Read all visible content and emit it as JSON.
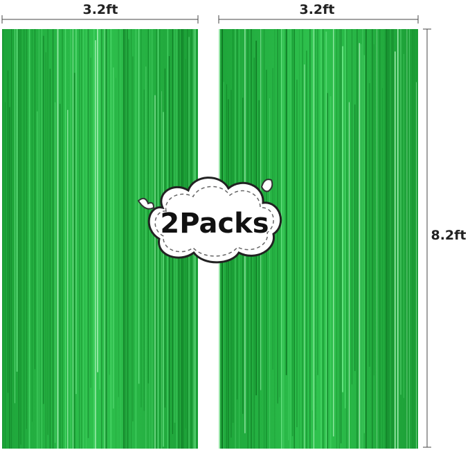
{
  "dimensions": {
    "left_width": "3.2ft",
    "right_width": "3.2ft",
    "height": "8.2ft"
  },
  "badge": "2Packs"
}
